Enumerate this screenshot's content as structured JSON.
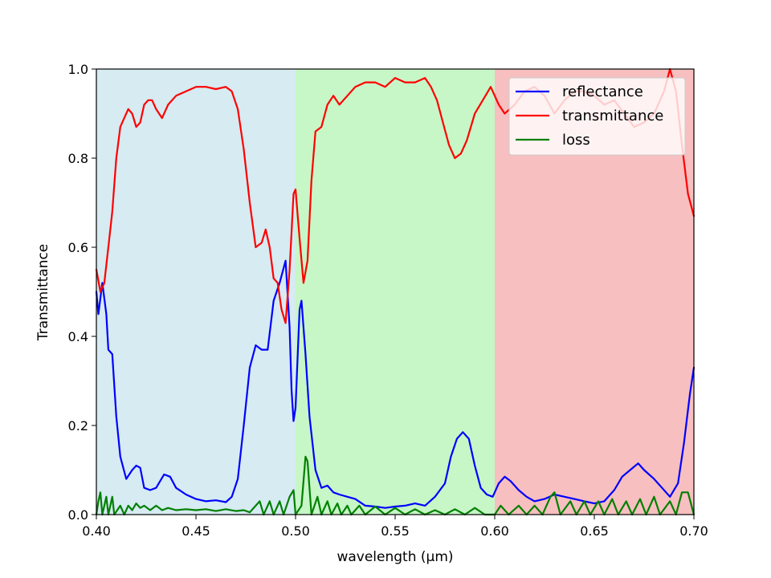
{
  "chart_data": {
    "type": "line",
    "title": "",
    "xlabel": "wavelength (µm)",
    "ylabel": "Transmittance",
    "xlim": [
      0.4,
      0.7
    ],
    "ylim": [
      0.0,
      1.0
    ],
    "xticks": [
      "0.40",
      "0.45",
      "0.50",
      "0.55",
      "0.60",
      "0.65",
      "0.70"
    ],
    "yticks": [
      "0.0",
      "0.2",
      "0.4",
      "0.6",
      "0.8",
      "1.0"
    ],
    "grid": false,
    "legend_position": "top-right",
    "bands": [
      {
        "x0": 0.4,
        "x1": 0.5,
        "color": "#add8e6"
      },
      {
        "x0": 0.5,
        "x1": 0.6,
        "color": "#90ee90"
      },
      {
        "x0": 0.6,
        "x1": 0.7,
        "color": "#f08080"
      }
    ],
    "series": [
      {
        "name": "reflectance",
        "color": "#0000ff",
        "points": [
          [
            0.4,
            0.5
          ],
          [
            0.401,
            0.45
          ],
          [
            0.403,
            0.52
          ],
          [
            0.405,
            0.45
          ],
          [
            0.406,
            0.37
          ],
          [
            0.408,
            0.36
          ],
          [
            0.41,
            0.22
          ],
          [
            0.412,
            0.13
          ],
          [
            0.415,
            0.08
          ],
          [
            0.418,
            0.1
          ],
          [
            0.42,
            0.11
          ],
          [
            0.422,
            0.105
          ],
          [
            0.424,
            0.06
          ],
          [
            0.427,
            0.055
          ],
          [
            0.43,
            0.06
          ],
          [
            0.434,
            0.09
          ],
          [
            0.437,
            0.085
          ],
          [
            0.44,
            0.06
          ],
          [
            0.445,
            0.045
          ],
          [
            0.45,
            0.035
          ],
          [
            0.455,
            0.03
          ],
          [
            0.46,
            0.032
          ],
          [
            0.465,
            0.028
          ],
          [
            0.468,
            0.04
          ],
          [
            0.471,
            0.08
          ],
          [
            0.474,
            0.2
          ],
          [
            0.477,
            0.33
          ],
          [
            0.48,
            0.38
          ],
          [
            0.483,
            0.37
          ],
          [
            0.486,
            0.37
          ],
          [
            0.489,
            0.48
          ],
          [
            0.492,
            0.52
          ],
          [
            0.495,
            0.57
          ],
          [
            0.497,
            0.42
          ],
          [
            0.498,
            0.28
          ],
          [
            0.499,
            0.21
          ],
          [
            0.5,
            0.24
          ],
          [
            0.502,
            0.46
          ],
          [
            0.503,
            0.48
          ],
          [
            0.505,
            0.36
          ],
          [
            0.507,
            0.22
          ],
          [
            0.51,
            0.1
          ],
          [
            0.513,
            0.06
          ],
          [
            0.516,
            0.065
          ],
          [
            0.519,
            0.05
          ],
          [
            0.522,
            0.045
          ],
          [
            0.526,
            0.04
          ],
          [
            0.53,
            0.035
          ],
          [
            0.535,
            0.02
          ],
          [
            0.54,
            0.018
          ],
          [
            0.545,
            0.015
          ],
          [
            0.55,
            0.018
          ],
          [
            0.555,
            0.02
          ],
          [
            0.56,
            0.025
          ],
          [
            0.565,
            0.02
          ],
          [
            0.57,
            0.04
          ],
          [
            0.575,
            0.07
          ],
          [
            0.578,
            0.13
          ],
          [
            0.581,
            0.17
          ],
          [
            0.584,
            0.185
          ],
          [
            0.587,
            0.17
          ],
          [
            0.59,
            0.11
          ],
          [
            0.593,
            0.06
          ],
          [
            0.596,
            0.045
          ],
          [
            0.599,
            0.04
          ],
          [
            0.602,
            0.07
          ],
          [
            0.605,
            0.085
          ],
          [
            0.608,
            0.075
          ],
          [
            0.612,
            0.055
          ],
          [
            0.616,
            0.04
          ],
          [
            0.62,
            0.03
          ],
          [
            0.625,
            0.035
          ],
          [
            0.63,
            0.045
          ],
          [
            0.635,
            0.04
          ],
          [
            0.64,
            0.035
          ],
          [
            0.645,
            0.03
          ],
          [
            0.65,
            0.025
          ],
          [
            0.655,
            0.03
          ],
          [
            0.66,
            0.055
          ],
          [
            0.664,
            0.085
          ],
          [
            0.668,
            0.1
          ],
          [
            0.672,
            0.115
          ],
          [
            0.675,
            0.1
          ],
          [
            0.68,
            0.08
          ],
          [
            0.684,
            0.06
          ],
          [
            0.688,
            0.04
          ],
          [
            0.692,
            0.07
          ],
          [
            0.695,
            0.16
          ],
          [
            0.698,
            0.27
          ],
          [
            0.7,
            0.33
          ]
        ]
      },
      {
        "name": "transmittance",
        "color": "#ff0000",
        "points": [
          [
            0.4,
            0.55
          ],
          [
            0.402,
            0.5
          ],
          [
            0.404,
            0.52
          ],
          [
            0.406,
            0.6
          ],
          [
            0.408,
            0.68
          ],
          [
            0.41,
            0.8
          ],
          [
            0.412,
            0.87
          ],
          [
            0.414,
            0.89
          ],
          [
            0.416,
            0.91
          ],
          [
            0.418,
            0.9
          ],
          [
            0.42,
            0.87
          ],
          [
            0.422,
            0.88
          ],
          [
            0.424,
            0.92
          ],
          [
            0.426,
            0.93
          ],
          [
            0.428,
            0.93
          ],
          [
            0.43,
            0.91
          ],
          [
            0.433,
            0.89
          ],
          [
            0.436,
            0.92
          ],
          [
            0.44,
            0.94
          ],
          [
            0.445,
            0.95
          ],
          [
            0.45,
            0.96
          ],
          [
            0.455,
            0.96
          ],
          [
            0.46,
            0.955
          ],
          [
            0.465,
            0.96
          ],
          [
            0.468,
            0.95
          ],
          [
            0.471,
            0.91
          ],
          [
            0.474,
            0.82
          ],
          [
            0.477,
            0.7
          ],
          [
            0.48,
            0.6
          ],
          [
            0.483,
            0.61
          ],
          [
            0.485,
            0.64
          ],
          [
            0.487,
            0.6
          ],
          [
            0.489,
            0.53
          ],
          [
            0.491,
            0.52
          ],
          [
            0.493,
            0.46
          ],
          [
            0.495,
            0.43
          ],
          [
            0.497,
            0.55
          ],
          [
            0.499,
            0.72
          ],
          [
            0.5,
            0.73
          ],
          [
            0.502,
            0.62
          ],
          [
            0.504,
            0.52
          ],
          [
            0.506,
            0.57
          ],
          [
            0.508,
            0.75
          ],
          [
            0.51,
            0.86
          ],
          [
            0.513,
            0.87
          ],
          [
            0.516,
            0.92
          ],
          [
            0.519,
            0.94
          ],
          [
            0.522,
            0.92
          ],
          [
            0.526,
            0.94
          ],
          [
            0.53,
            0.96
          ],
          [
            0.535,
            0.97
          ],
          [
            0.54,
            0.97
          ],
          [
            0.545,
            0.96
          ],
          [
            0.55,
            0.98
          ],
          [
            0.555,
            0.97
          ],
          [
            0.56,
            0.97
          ],
          [
            0.565,
            0.98
          ],
          [
            0.568,
            0.96
          ],
          [
            0.571,
            0.93
          ],
          [
            0.574,
            0.88
          ],
          [
            0.577,
            0.83
          ],
          [
            0.58,
            0.8
          ],
          [
            0.583,
            0.81
          ],
          [
            0.586,
            0.84
          ],
          [
            0.59,
            0.9
          ],
          [
            0.594,
            0.93
          ],
          [
            0.598,
            0.96
          ],
          [
            0.602,
            0.92
          ],
          [
            0.605,
            0.9
          ],
          [
            0.61,
            0.92
          ],
          [
            0.615,
            0.95
          ],
          [
            0.62,
            0.96
          ],
          [
            0.625,
            0.94
          ],
          [
            0.63,
            0.9
          ],
          [
            0.635,
            0.93
          ],
          [
            0.64,
            0.95
          ],
          [
            0.645,
            0.95
          ],
          [
            0.65,
            0.94
          ],
          [
            0.655,
            0.92
          ],
          [
            0.66,
            0.93
          ],
          [
            0.665,
            0.9
          ],
          [
            0.67,
            0.87
          ],
          [
            0.675,
            0.88
          ],
          [
            0.68,
            0.9
          ],
          [
            0.685,
            0.95
          ],
          [
            0.688,
            1.0
          ],
          [
            0.691,
            0.95
          ],
          [
            0.694,
            0.83
          ],
          [
            0.697,
            0.72
          ],
          [
            0.7,
            0.67
          ]
        ]
      },
      {
        "name": "loss",
        "color": "#008000",
        "points": [
          [
            0.4,
            0.0
          ],
          [
            0.401,
            0.03
          ],
          [
            0.402,
            0.05
          ],
          [
            0.403,
            0.0
          ],
          [
            0.405,
            0.04
          ],
          [
            0.406,
            0.0
          ],
          [
            0.408,
            0.04
          ],
          [
            0.409,
            0.0
          ],
          [
            0.412,
            0.02
          ],
          [
            0.414,
            0.0
          ],
          [
            0.416,
            0.02
          ],
          [
            0.418,
            0.01
          ],
          [
            0.42,
            0.025
          ],
          [
            0.422,
            0.015
          ],
          [
            0.424,
            0.02
          ],
          [
            0.427,
            0.01
          ],
          [
            0.43,
            0.02
          ],
          [
            0.433,
            0.01
          ],
          [
            0.436,
            0.015
          ],
          [
            0.44,
            0.01
          ],
          [
            0.445,
            0.012
          ],
          [
            0.45,
            0.01
          ],
          [
            0.455,
            0.012
          ],
          [
            0.46,
            0.008
          ],
          [
            0.465,
            0.012
          ],
          [
            0.47,
            0.008
          ],
          [
            0.474,
            0.01
          ],
          [
            0.477,
            0.005
          ],
          [
            0.48,
            0.02
          ],
          [
            0.482,
            0.03
          ],
          [
            0.484,
            0.0
          ],
          [
            0.487,
            0.03
          ],
          [
            0.489,
            0.0
          ],
          [
            0.492,
            0.03
          ],
          [
            0.494,
            0.0
          ],
          [
            0.497,
            0.04
          ],
          [
            0.499,
            0.055
          ],
          [
            0.5,
            0.0
          ],
          [
            0.503,
            0.02
          ],
          [
            0.505,
            0.13
          ],
          [
            0.506,
            0.12
          ],
          [
            0.508,
            0.0
          ],
          [
            0.511,
            0.04
          ],
          [
            0.513,
            0.0
          ],
          [
            0.516,
            0.03
          ],
          [
            0.518,
            0.0
          ],
          [
            0.521,
            0.025
          ],
          [
            0.523,
            0.0
          ],
          [
            0.526,
            0.02
          ],
          [
            0.528,
            0.0
          ],
          [
            0.532,
            0.02
          ],
          [
            0.535,
            0.0
          ],
          [
            0.54,
            0.018
          ],
          [
            0.545,
            0.0
          ],
          [
            0.55,
            0.015
          ],
          [
            0.555,
            0.0
          ],
          [
            0.56,
            0.012
          ],
          [
            0.565,
            0.0
          ],
          [
            0.57,
            0.01
          ],
          [
            0.575,
            0.0
          ],
          [
            0.58,
            0.012
          ],
          [
            0.585,
            0.0
          ],
          [
            0.59,
            0.015
          ],
          [
            0.595,
            0.0
          ],
          [
            0.6,
            0.0
          ],
          [
            0.603,
            0.02
          ],
          [
            0.607,
            0.0
          ],
          [
            0.612,
            0.02
          ],
          [
            0.616,
            0.0
          ],
          [
            0.62,
            0.02
          ],
          [
            0.624,
            0.0
          ],
          [
            0.628,
            0.04
          ],
          [
            0.63,
            0.05
          ],
          [
            0.633,
            0.0
          ],
          [
            0.638,
            0.03
          ],
          [
            0.641,
            0.0
          ],
          [
            0.645,
            0.03
          ],
          [
            0.648,
            0.0
          ],
          [
            0.652,
            0.03
          ],
          [
            0.655,
            0.0
          ],
          [
            0.659,
            0.035
          ],
          [
            0.662,
            0.0
          ],
          [
            0.666,
            0.03
          ],
          [
            0.669,
            0.0
          ],
          [
            0.673,
            0.035
          ],
          [
            0.676,
            0.0
          ],
          [
            0.68,
            0.04
          ],
          [
            0.683,
            0.0
          ],
          [
            0.688,
            0.03
          ],
          [
            0.691,
            0.0
          ],
          [
            0.694,
            0.05
          ],
          [
            0.697,
            0.05
          ],
          [
            0.7,
            0.0
          ]
        ]
      }
    ]
  }
}
